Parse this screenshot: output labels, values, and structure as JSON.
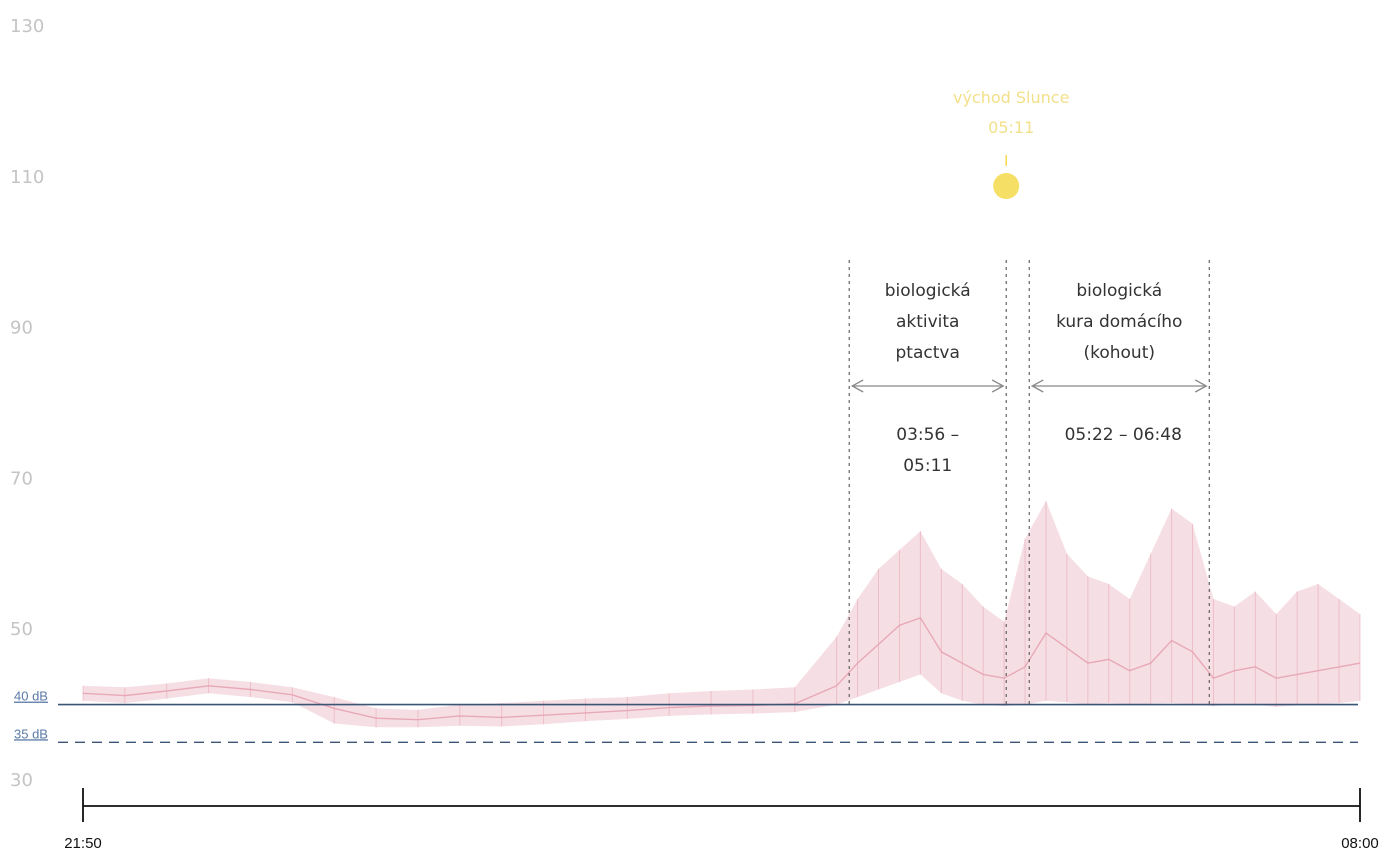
{
  "chart_data": {
    "type": "line",
    "title": "",
    "xlabel": "",
    "ylabel": "",
    "ylim": [
      30,
      130
    ],
    "yticks": [
      "130",
      "110",
      "90",
      "70",
      "50",
      "30"
    ],
    "x_start": "21:50",
    "x_end": "08:00",
    "reference_lines": [
      {
        "label": "40 dB",
        "value": 40,
        "style": "solid",
        "color": "#3b5577"
      },
      {
        "label": "35 dB",
        "value": 35,
        "style": "dashed",
        "color": "#3b5577"
      }
    ],
    "series": [
      {
        "color": "#e6a3b2",
        "x": [
          "21:50",
          "22:10",
          "22:30",
          "22:50",
          "23:10",
          "23:30",
          "23:50",
          "00:10",
          "00:30",
          "00:50",
          "01:10",
          "01:30",
          "01:50",
          "02:10",
          "02:30",
          "02:50",
          "03:10",
          "03:30",
          "03:50",
          "04:00",
          "04:10",
          "04:20",
          "04:30",
          "04:40",
          "04:50",
          "05:00",
          "05:10",
          "05:20",
          "05:30",
          "05:40",
          "05:50",
          "06:00",
          "06:10",
          "06:20",
          "06:30",
          "06:40",
          "06:50",
          "07:00",
          "07:10",
          "07:20",
          "07:30",
          "07:40",
          "07:50",
          "08:00"
        ],
        "y": [
          41.5,
          41.2,
          41.8,
          42.5,
          42.0,
          41.3,
          39.5,
          38.2,
          38.0,
          38.5,
          38.3,
          38.6,
          38.9,
          39.2,
          39.6,
          39.8,
          39.9,
          40.1,
          42.5,
          45.5,
          48.0,
          50.5,
          51.5,
          47.0,
          45.5,
          44.0,
          43.5,
          45.0,
          49.5,
          47.5,
          45.5,
          46.0,
          44.5,
          45.5,
          48.5,
          47.0,
          43.5,
          44.5,
          45.0,
          43.5,
          44.0,
          44.5,
          45.0,
          45.5
        ],
        "y_max": [
          42.5,
          42.3,
          42.8,
          43.5,
          43.0,
          42.3,
          41.0,
          39.5,
          39.3,
          40.0,
          40.2,
          40.5,
          40.8,
          41.0,
          41.5,
          41.8,
          42.0,
          42.3,
          49.0,
          54.0,
          58.0,
          60.5,
          63.0,
          58.0,
          56.0,
          53.0,
          51.0,
          62.0,
          67.0,
          60.0,
          57.0,
          56.0,
          54.0,
          60.0,
          66.0,
          64.0,
          54.0,
          53.0,
          55.0,
          52.0,
          55.0,
          56.0,
          54.0,
          52.0
        ],
        "y_min": [
          40.5,
          40.2,
          40.8,
          41.5,
          41.0,
          40.3,
          37.5,
          37.0,
          37.0,
          37.2,
          37.1,
          37.4,
          37.8,
          38.1,
          38.5,
          38.7,
          38.8,
          39.0,
          40.0,
          41.0,
          42.0,
          43.0,
          44.0,
          41.5,
          40.5,
          40.0,
          39.8,
          40.0,
          40.5,
          40.3,
          40.0,
          40.2,
          40.0,
          40.1,
          40.2,
          40.0,
          39.8,
          40.0,
          40.0,
          39.7,
          39.9,
          40.0,
          40.2,
          40.5
        ]
      }
    ],
    "annotations": [
      {
        "lines": [
          "biologická",
          "aktivita",
          "ptactva"
        ],
        "range": "03:56 – 05:11",
        "range_lines": [
          "03:56 –",
          "05:11"
        ],
        "x_start": "03:56",
        "x_end": "05:11"
      },
      {
        "lines": [
          "biologická",
          "kura domácího",
          "(kohout)"
        ],
        "range": "05:22 – 06:48",
        "range_lines": [
          "05:22 – 06:48"
        ],
        "x_start": "05:22",
        "x_end": "06:48"
      }
    ],
    "sunrise": {
      "lines": [
        "východ Slunce",
        "05:11"
      ],
      "time": "05:11",
      "color": "#f5d94a"
    },
    "grid": false,
    "legend": "none"
  }
}
